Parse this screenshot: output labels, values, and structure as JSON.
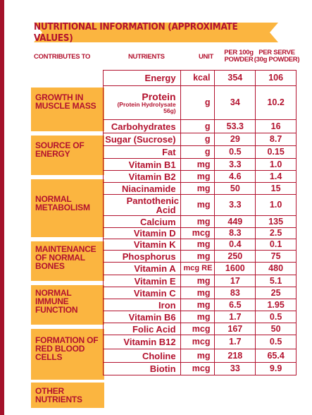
{
  "header": {
    "title": "NUTRITIONAL INFORMATION (APPROXIMATE VALUES)"
  },
  "columns": {
    "contributes": "CONTRIBUTES TO",
    "nutrients": "NUTRIENTS",
    "unit": "UNIT",
    "per100_line1": "PER 100g",
    "per100_line2": "POWDER",
    "serve_line1": "PER SERVE",
    "serve_line2": "(30g POWDER)"
  },
  "groups": [
    "GROWTH IN\nMUSCLE MASS",
    "SOURCE OF\nENERGY",
    "NORMAL\nMETABOLISM",
    "MAINTENANCE\nOF NORMAL\nBONES",
    "NORMAL\nIMMUNE\nFUNCTION",
    "FORMATION OF\nRED BLOOD\nCELLS",
    "OTHER\nNUTRIENTS"
  ],
  "rows": [
    {
      "name": "Energy",
      "unit": "kcal",
      "per100": "354",
      "serve": "106"
    },
    {
      "name": "Protein",
      "sub": "(Protein Hydrolysate 56g)",
      "unit": "g",
      "per100": "34",
      "serve": "10.2"
    },
    {
      "name": "Carbohydrates",
      "unit": "g",
      "per100": "53.3",
      "serve": "16"
    },
    {
      "name": "Sugar (Sucrose)",
      "unit": "g",
      "per100": "29",
      "serve": "8.7"
    },
    {
      "name": "Fat",
      "unit": "g",
      "per100": "0.5",
      "serve": "0.15"
    },
    {
      "name": "Vitamin B1",
      "unit": "mg",
      "per100": "3.3",
      "serve": "1.0"
    },
    {
      "name": "Vitamin B2",
      "unit": "mg",
      "per100": "4.6",
      "serve": "1.4"
    },
    {
      "name": "Niacinamide",
      "unit": "mg",
      "per100": "50",
      "serve": "15"
    },
    {
      "name": "Pantothenic Acid",
      "unit": "mg",
      "per100": "3.3",
      "serve": "1.0"
    },
    {
      "name": "Calcium",
      "unit": "mg",
      "per100": "449",
      "serve": "135"
    },
    {
      "name": "Vitamin D",
      "unit": "mcg",
      "per100": "8.3",
      "serve": "2.5"
    },
    {
      "name": "Vitamin K",
      "unit": "mg",
      "per100": "0.4",
      "serve": "0.1"
    },
    {
      "name": "Phosphorus",
      "unit": "mg",
      "per100": "250",
      "serve": "75"
    },
    {
      "name": "Vitamin A",
      "unit": "mcg RE",
      "per100": "1600",
      "serve": "480"
    },
    {
      "name": "Vitamin E",
      "unit": "mg",
      "per100": "17",
      "serve": "5.1"
    },
    {
      "name": "Vitamin C",
      "unit": "mg",
      "per100": "83",
      "serve": "25"
    },
    {
      "name": "Iron",
      "unit": "mg",
      "per100": "6.5",
      "serve": "1.95"
    },
    {
      "name": "Vitamin B6",
      "unit": "mg",
      "per100": "1.7",
      "serve": "0.5"
    },
    {
      "name": "Folic Acid",
      "unit": "mcg",
      "per100": "167",
      "serve": "50"
    },
    {
      "name": "Vitamin B12",
      "unit": "mcg",
      "per100": "1.7",
      "serve": "0.5"
    },
    {
      "name": "Choline",
      "unit": "mg",
      "per100": "218",
      "serve": "65.4"
    },
    {
      "name": "Biotin",
      "unit": "mcg",
      "per100": "33",
      "serve": "9.9"
    }
  ],
  "colors": {
    "accent": "#b3122e",
    "band": "#fbb540",
    "edge": "#a4122a"
  }
}
